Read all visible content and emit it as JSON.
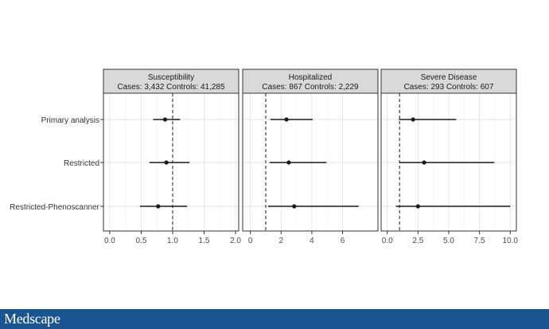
{
  "chart_data": {
    "type": "forest",
    "rows": [
      "Primary analysis",
      "Restricted",
      "Restricted-Phenoscanner"
    ],
    "panels": [
      {
        "title": "Susceptibility",
        "subtitle": "Cases: 3,432 Controls: 41,285",
        "xlim": [
          -0.1,
          2.05
        ],
        "ticks": [
          0.0,
          0.5,
          1.0,
          1.5,
          2.0
        ],
        "tick_labels": [
          "0.0",
          "0.5",
          "1.0",
          "1.5",
          "2.0"
        ],
        "reference_line": 1.0,
        "estimates": [
          {
            "row": "Primary analysis",
            "estimate": 0.88,
            "lower": 0.69,
            "upper": 1.12
          },
          {
            "row": "Restricted",
            "estimate": 0.9,
            "lower": 0.63,
            "upper": 1.27
          },
          {
            "row": "Restricted-Phenoscanner",
            "estimate": 0.77,
            "lower": 0.48,
            "upper": 1.23
          }
        ]
      },
      {
        "title": "Hospitalized",
        "subtitle": "Cases: 867 Controls: 2,229",
        "xlim": [
          -0.5,
          8.3
        ],
        "ticks": [
          0,
          2,
          4,
          6
        ],
        "tick_labels": [
          "0",
          "2",
          "4",
          "6"
        ],
        "reference_line": 1.0,
        "estimates": [
          {
            "row": "Primary analysis",
            "estimate": 2.35,
            "lower": 1.3,
            "upper": 4.05
          },
          {
            "row": "Restricted",
            "estimate": 2.5,
            "lower": 1.25,
            "upper": 4.95
          },
          {
            "row": "Restricted-Phenoscanner",
            "estimate": 2.85,
            "lower": 1.15,
            "upper": 7.05
          }
        ]
      },
      {
        "title": "Severe Disease",
        "subtitle": "Cases: 293 Controls: 607",
        "xlim": [
          -0.5,
          10.5
        ],
        "ticks": [
          0.0,
          2.5,
          5.0,
          7.5,
          10.0
        ],
        "tick_labels": [
          "0.0",
          "2.5",
          "5.0",
          "7.5",
          "10.0"
        ],
        "reference_line": 1.0,
        "estimates": [
          {
            "row": "Primary analysis",
            "estimate": 2.1,
            "lower": 0.95,
            "upper": 5.6
          },
          {
            "row": "Restricted",
            "estimate": 3.0,
            "lower": 1.0,
            "upper": 8.7
          },
          {
            "row": "Restricted-Phenoscanner",
            "estimate": 2.5,
            "lower": 0.7,
            "upper": 10.0
          }
        ]
      }
    ],
    "grid": true,
    "legend": "none"
  },
  "footer": {
    "brand": "Medscape",
    "color": "#1a5592"
  }
}
